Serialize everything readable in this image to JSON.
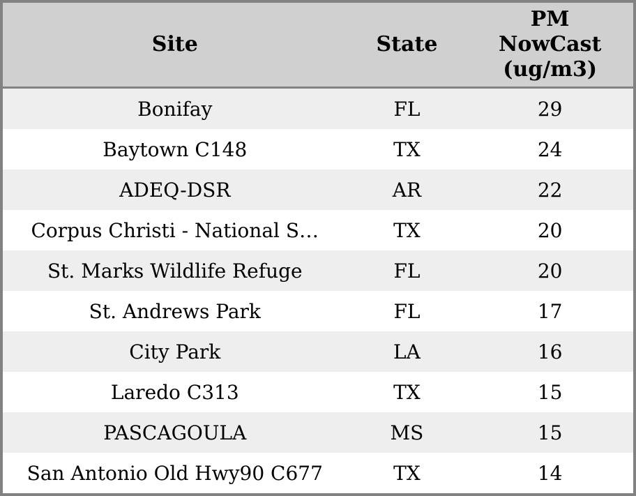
{
  "colors": {
    "header_bg": "#d0d0d0",
    "row_odd": "#eeeeee",
    "row_even": "#ffffff",
    "border": "#828282",
    "text": "#000000"
  },
  "table": {
    "headers": {
      "site": "Site",
      "state": "State",
      "pm": "PM\nNowCast\n(ug/m3)"
    }
  },
  "chart_data": {
    "type": "table",
    "columns": [
      "Site",
      "State",
      "PM NowCast (ug/m3)"
    ],
    "rows": [
      [
        "Bonifay",
        "FL",
        29
      ],
      [
        "Baytown C148",
        "TX",
        24
      ],
      [
        "ADEQ-DSR",
        "AR",
        22
      ],
      [
        "Corpus Christi - National S…",
        "TX",
        20
      ],
      [
        "St. Marks Wildlife Refuge",
        "FL",
        20
      ],
      [
        "St. Andrews Park",
        "FL",
        17
      ],
      [
        "City Park",
        "LA",
        16
      ],
      [
        "Laredo C313",
        "TX",
        15
      ],
      [
        "PASCAGOULA",
        "MS",
        15
      ],
      [
        "San Antonio Old Hwy90 C677",
        "TX",
        14
      ]
    ],
    "layout": {
      "header_background": "#d0d0d0",
      "striped_rows": true,
      "text_align": "center"
    }
  }
}
